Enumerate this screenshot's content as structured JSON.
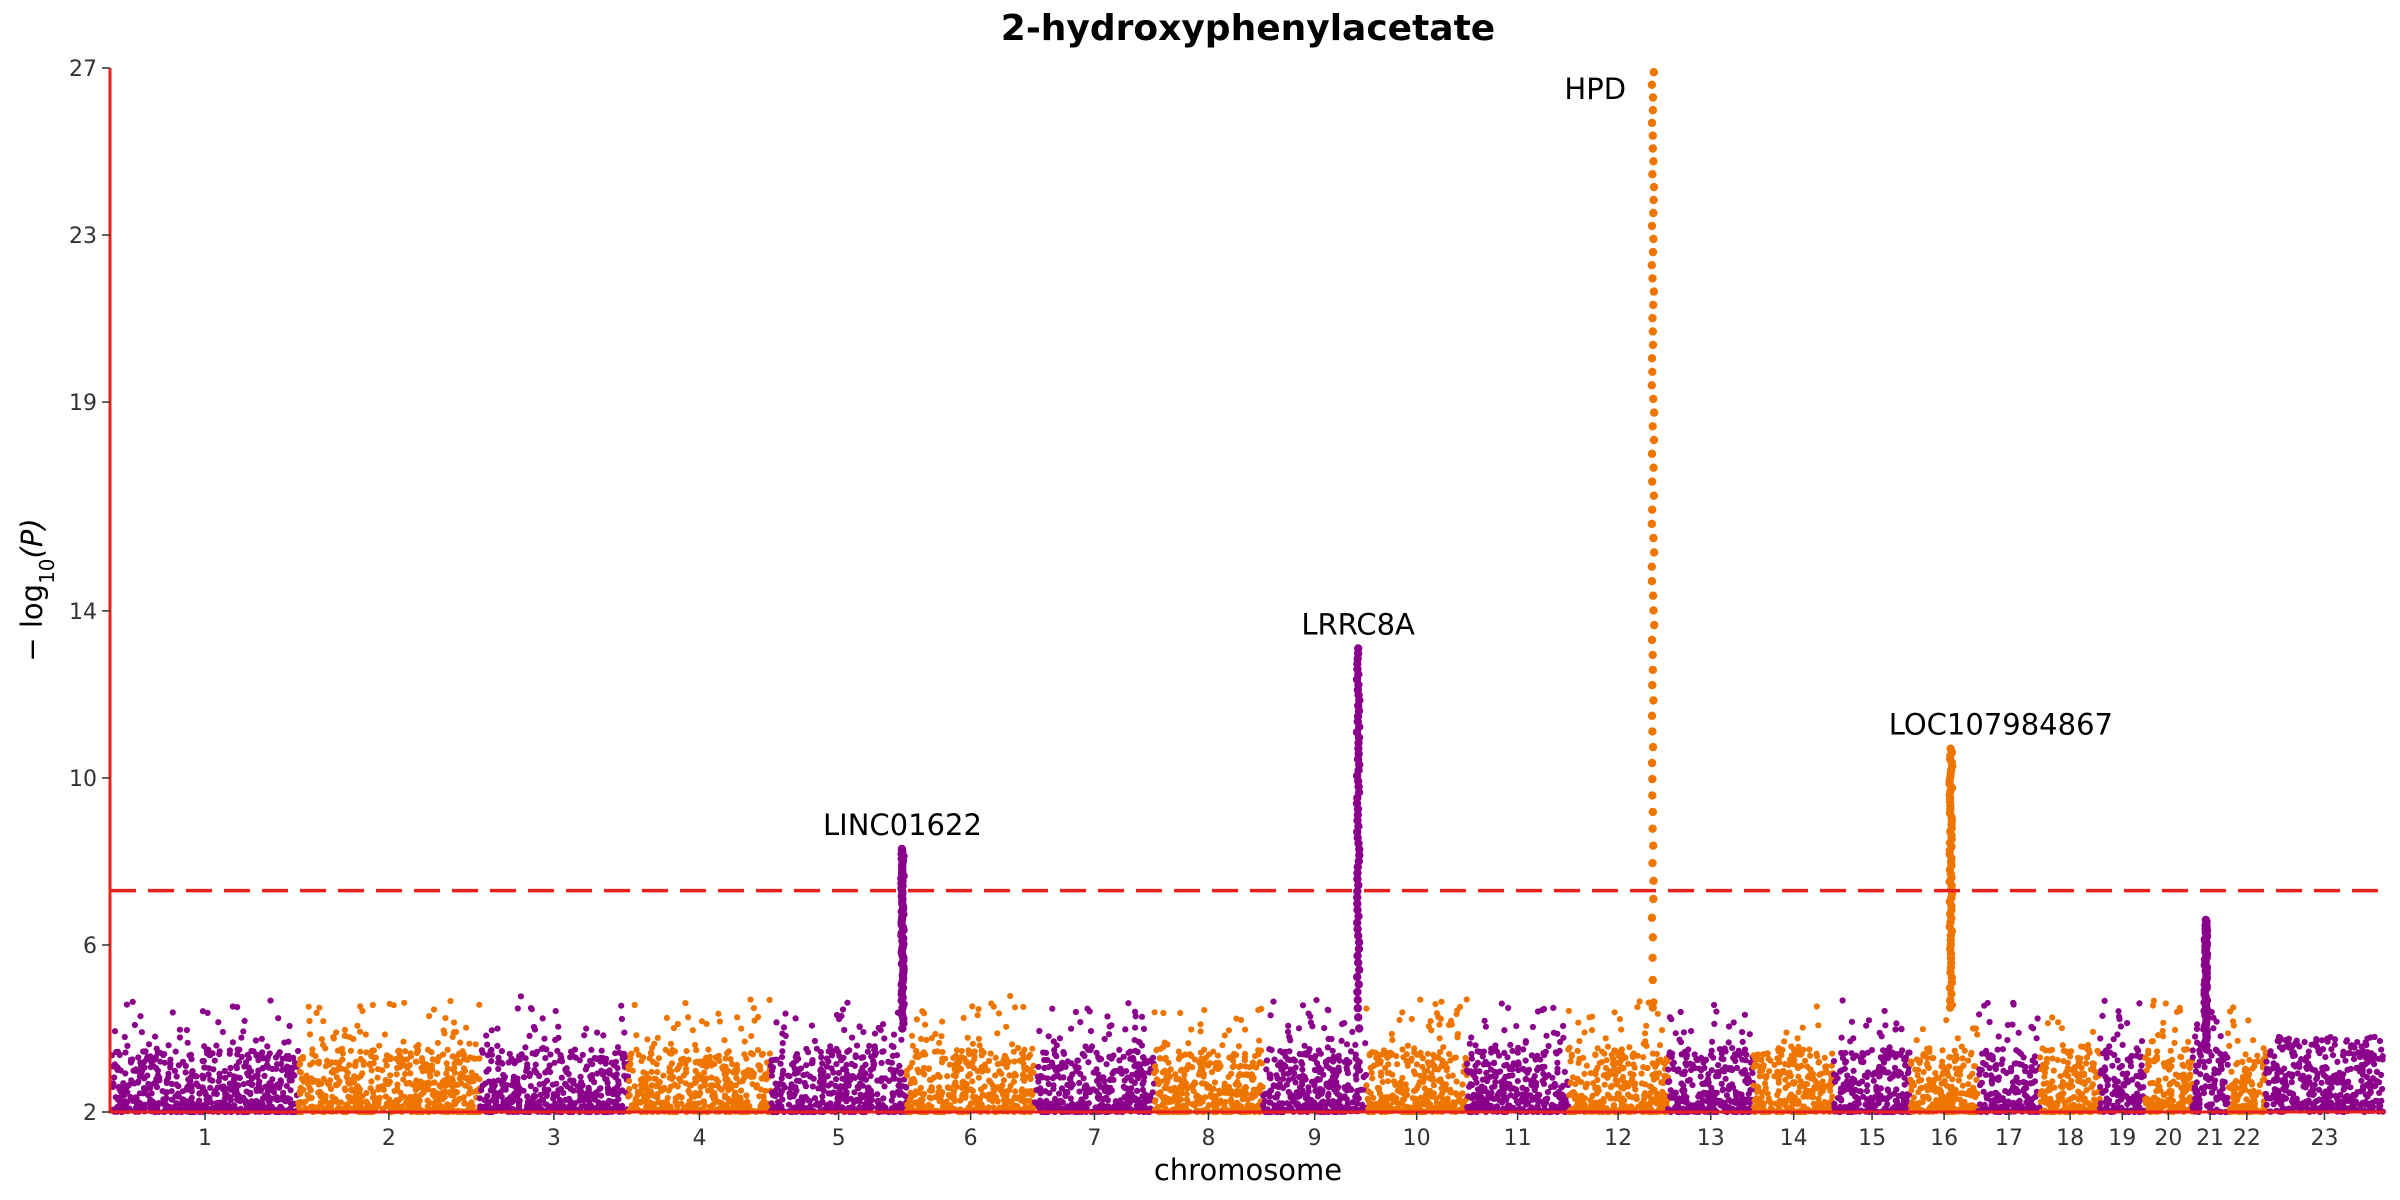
{
  "chart_data": {
    "type": "scatter",
    "title": "2-hydroxyphenylacetate",
    "xlabel": "chromosome",
    "ylabel_prefix": "− log",
    "ylabel_sub": "10",
    "ylabel_suffix": "(P)",
    "ylim": [
      2,
      27
    ],
    "y_ticks": [
      2,
      6,
      10,
      14,
      19,
      23,
      27
    ],
    "significance_threshold": 7.3,
    "colors": {
      "odd": "#8b008b",
      "even": "#ee7600",
      "axis": "#e8211c",
      "threshold": "#e8211c"
    },
    "chromosomes": [
      {
        "label": "1",
        "length": 248
      },
      {
        "label": "2",
        "length": 242
      },
      {
        "label": "3",
        "length": 198
      },
      {
        "label": "4",
        "length": 190
      },
      {
        "label": "5",
        "length": 181
      },
      {
        "label": "6",
        "length": 171
      },
      {
        "label": "7",
        "length": 159
      },
      {
        "label": "8",
        "length": 145
      },
      {
        "label": "9",
        "length": 138
      },
      {
        "label": "10",
        "length": 134
      },
      {
        "label": "11",
        "length": 135
      },
      {
        "label": "12",
        "length": 133
      },
      {
        "label": "13",
        "length": 114
      },
      {
        "label": "14",
        "length": 107
      },
      {
        "label": "15",
        "length": 102
      },
      {
        "label": "16",
        "length": 90
      },
      {
        "label": "17",
        "length": 83
      },
      {
        "label": "18",
        "length": 80
      },
      {
        "label": "19",
        "length": 59
      },
      {
        "label": "20",
        "length": 64
      },
      {
        "label": "21",
        "length": 47
      },
      {
        "label": "22",
        "length": 51
      },
      {
        "label": "23",
        "length": 156
      }
    ],
    "peaks": [
      {
        "chrom": "5",
        "pos": 0.97,
        "min": 4.0,
        "max": 8.3,
        "gene": "LINC01622"
      },
      {
        "chrom": "9",
        "pos": 0.92,
        "min": 4.0,
        "max": 13.1,
        "gene": "LRRC8A"
      },
      {
        "chrom": "12",
        "pos": 0.85,
        "min": 4.5,
        "max": 26.9,
        "gene": "HPD"
      },
      {
        "chrom": "16",
        "pos": 0.6,
        "min": 4.5,
        "max": 10.7,
        "gene": "LOC107984867"
      },
      {
        "chrom": "21",
        "pos": 0.38,
        "min": 3.5,
        "max": 6.6
      }
    ]
  }
}
